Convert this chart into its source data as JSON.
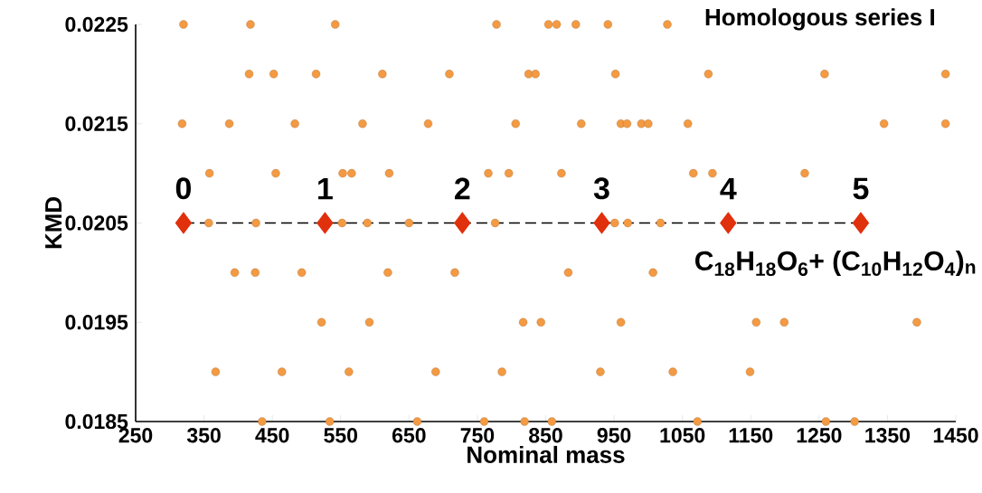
{
  "chart_data": {
    "type": "scatter",
    "xlabel": "Nominal mass",
    "ylabel": "KMD",
    "xlim": [
      250,
      1450
    ],
    "ylim": [
      0.0185,
      0.0225
    ],
    "xticks": [
      250,
      350,
      450,
      550,
      650,
      750,
      850,
      950,
      1050,
      1150,
      1250,
      1350,
      1450
    ],
    "yticks": [
      0.0185,
      0.0195,
      0.0205,
      0.0215,
      0.0225
    ],
    "series": [
      {
        "color": "#f39a43",
        "marker": "circle",
        "x": [
          320,
          418,
          542,
          778,
          854,
          866,
          894,
          941,
          1028,
          416,
          452,
          514,
          611,
          709,
          825,
          835,
          952,
          1088,
          1258,
          1435,
          318,
          387,
          483,
          582,
          678,
          806,
          902,
          960,
          969,
          990,
          1000,
          1058,
          1345,
          1435,
          358,
          455,
          553,
          566,
          621,
          766,
          796,
          873,
          1066,
          1094,
          1229,
          357,
          426,
          552,
          589,
          650,
          776,
          951,
          970,
          1018,
          395,
          425,
          493,
          619,
          717,
          883,
          1007,
          522,
          592,
          817,
          843,
          960,
          1158,
          1199,
          1393,
          367,
          464,
          562,
          689,
          786,
          930,
          1036,
          1149,
          435,
          534,
          662,
          760,
          819,
          859,
          1072,
          1260,
          1302
        ],
        "values": [
          0.0225,
          0.0225,
          0.0225,
          0.0225,
          0.0225,
          0.0225,
          0.0225,
          0.0225,
          0.0225,
          0.022,
          0.022,
          0.022,
          0.022,
          0.022,
          0.022,
          0.022,
          0.022,
          0.022,
          0.022,
          0.022,
          0.0215,
          0.0215,
          0.0215,
          0.0215,
          0.0215,
          0.0215,
          0.0215,
          0.0215,
          0.0215,
          0.0215,
          0.0215,
          0.0215,
          0.0215,
          0.0215,
          0.021,
          0.021,
          0.021,
          0.021,
          0.021,
          0.021,
          0.021,
          0.021,
          0.021,
          0.021,
          0.021,
          0.0205,
          0.0205,
          0.0205,
          0.0205,
          0.0205,
          0.0205,
          0.0205,
          0.0205,
          0.0205,
          0.02,
          0.02,
          0.02,
          0.02,
          0.02,
          0.02,
          0.02,
          0.0195,
          0.0195,
          0.0195,
          0.0195,
          0.0195,
          0.0195,
          0.0195,
          0.0195,
          0.019,
          0.019,
          0.019,
          0.019,
          0.019,
          0.019,
          0.019,
          0.019,
          0.0185,
          0.0185,
          0.0185,
          0.0185,
          0.0185,
          0.0185,
          0.0185,
          0.0185,
          0.0185
        ]
      },
      {
        "color": "#e0300c",
        "marker": "diamond",
        "x": [
          320,
          527,
          728,
          932,
          1117,
          1311
        ],
        "values": [
          0.0205,
          0.0205,
          0.0205,
          0.0205,
          0.0205,
          0.0205
        ]
      }
    ],
    "ref_lines": [
      {
        "axis": "y",
        "value": 0.0205,
        "color": "#000000",
        "line_style": "dashed"
      }
    ],
    "annotations": [
      {
        "text": "0",
        "x": 320,
        "y": 0.0205
      },
      {
        "text": "1",
        "x": 527,
        "y": 0.0205
      },
      {
        "text": "2",
        "x": 728,
        "y": 0.0205
      },
      {
        "text": "3",
        "x": 932,
        "y": 0.0205
      },
      {
        "text": "4",
        "x": 1117,
        "y": 0.0205
      },
      {
        "text": "5",
        "x": 1311,
        "y": 0.0205
      },
      "Homologous series I",
      "C$_{18}$H$_{18}$O$_{6}$+ (C$_{10}$H$_{12}$O$_{4}$)$_{n}$"
    ]
  }
}
